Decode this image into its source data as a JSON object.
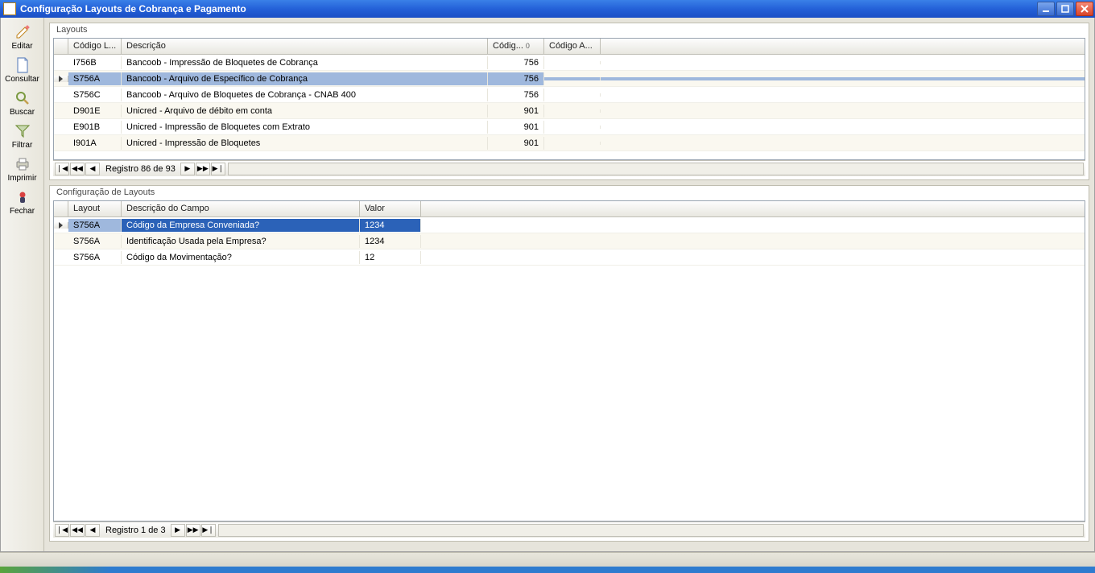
{
  "window": {
    "title": "Configuração Layouts de Cobrança e Pagamento"
  },
  "sidebar": {
    "items": [
      {
        "label": "Editar",
        "icon": "edit"
      },
      {
        "label": "Consultar",
        "icon": "doc"
      },
      {
        "label": "Buscar",
        "icon": "search"
      },
      {
        "label": "Filtrar",
        "icon": "filter"
      },
      {
        "label": "Imprimir",
        "icon": "print"
      },
      {
        "label": "Fechar",
        "icon": "close"
      }
    ]
  },
  "topPanel": {
    "title": "Layouts",
    "columns": {
      "code": "Código L...",
      "desc": "Descrição",
      "cod2": "Códig...",
      "cod3": "Código A...",
      "sortGlyph": "0"
    },
    "rows": [
      {
        "code": "I756B",
        "desc": "Bancoob - Impressão de Bloquetes de Cobrança",
        "cod2": "756",
        "cod3": ""
      },
      {
        "code": "S756A",
        "desc": "Bancoob - Arquivo de Específico de Cobrança",
        "cod2": "756",
        "cod3": "",
        "selected": true
      },
      {
        "code": "S756C",
        "desc": "Bancoob - Arquivo de Bloquetes de Cobrança - CNAB 400",
        "cod2": "756",
        "cod3": ""
      },
      {
        "code": "D901E",
        "desc": "Unicred - Arquivo de débito em conta",
        "cod2": "901",
        "cod3": ""
      },
      {
        "code": "E901B",
        "desc": "Unicred - Impressão de Bloquetes com Extrato",
        "cod2": "901",
        "cod3": ""
      },
      {
        "code": "I901A",
        "desc": "Unicred - Impressão de Bloquetes",
        "cod2": "901",
        "cod3": ""
      }
    ],
    "nav": "Registro 86 de 93"
  },
  "bottomPanel": {
    "title": "Configuração de Layouts",
    "columns": {
      "layout": "Layout",
      "campo": "Descrição do Campo",
      "valor": "Valor"
    },
    "rows": [
      {
        "layout": "S756A",
        "campo": "Código da Empresa Conveniada?",
        "valor": "1234",
        "selected": true
      },
      {
        "layout": "S756A",
        "campo": "Identificação Usada pela Empresa?",
        "valor": "1234"
      },
      {
        "layout": "S756A",
        "campo": "Código da Movimentação?",
        "valor": "12"
      }
    ],
    "nav": "Registro 1 de 3"
  },
  "colors": {
    "title_gradient_top": "#3a80e8",
    "title_gradient_bottom": "#1b4fc5",
    "selection_light": "#9fb8dd",
    "selection_dark": "#2b62b8",
    "grid_border": "#99a4b0",
    "header_bg": "#e8e7e0"
  }
}
